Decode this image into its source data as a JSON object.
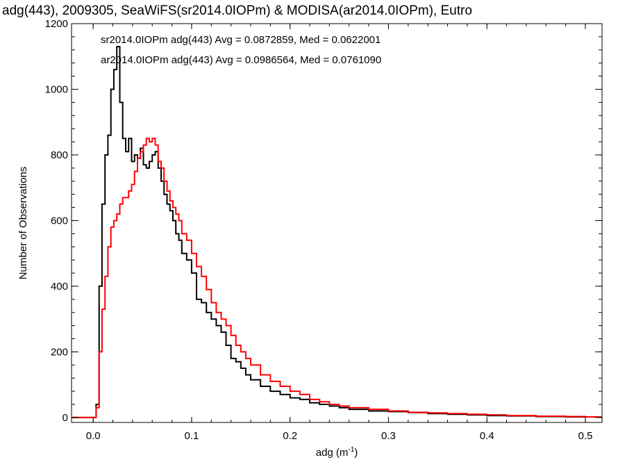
{
  "chart_data": {
    "type": "line",
    "title": "adg(443), 2009305, SeaWiFS(sr2014.0IOPm) & MODISA(ar2014.0IOPm), Eutro",
    "xlabel": "adg (m",
    "xlabel_sup": "-1",
    "xlabel_close": ")",
    "ylabel": "Number of Observations",
    "xlim": [
      -0.022,
      0.517
    ],
    "ylim": [
      -15,
      1200
    ],
    "xticks": [
      0.0,
      0.1,
      0.2,
      0.3,
      0.4,
      0.5
    ],
    "xtick_labels": [
      "0.0",
      "0.1",
      "0.2",
      "0.3",
      "0.4",
      "0.5"
    ],
    "yticks": [
      0,
      200,
      400,
      600,
      800,
      1000,
      1200
    ],
    "ytick_labels": [
      "0",
      "200",
      "400",
      "600",
      "800",
      "1000",
      "1200"
    ],
    "grid": false,
    "series": [
      {
        "name": "sr2014.0IOPm adg(443) Avg = 0.0872859, Med = 0.0622001",
        "color": "#000000",
        "x": [
          -0.022,
          0.0,
          0.003,
          0.006,
          0.009,
          0.012,
          0.015,
          0.018,
          0.021,
          0.024,
          0.027,
          0.03,
          0.033,
          0.036,
          0.039,
          0.042,
          0.045,
          0.048,
          0.051,
          0.054,
          0.057,
          0.06,
          0.063,
          0.066,
          0.069,
          0.072,
          0.075,
          0.078,
          0.081,
          0.084,
          0.087,
          0.09,
          0.095,
          0.1,
          0.105,
          0.11,
          0.115,
          0.12,
          0.125,
          0.13,
          0.135,
          0.14,
          0.145,
          0.15,
          0.155,
          0.16,
          0.17,
          0.18,
          0.19,
          0.2,
          0.21,
          0.22,
          0.23,
          0.24,
          0.25,
          0.26,
          0.28,
          0.3,
          0.32,
          0.34,
          0.36,
          0.38,
          0.4,
          0.42,
          0.45,
          0.48,
          0.5,
          0.517
        ],
        "y": [
          0,
          0,
          40,
          400,
          650,
          800,
          860,
          1000,
          1060,
          1130,
          960,
          850,
          810,
          850,
          780,
          800,
          790,
          820,
          770,
          760,
          780,
          800,
          810,
          760,
          720,
          680,
          650,
          630,
          600,
          560,
          540,
          500,
          480,
          440,
          360,
          350,
          320,
          300,
          280,
          260,
          220,
          180,
          170,
          150,
          130,
          115,
          95,
          80,
          70,
          60,
          55,
          45,
          40,
          35,
          30,
          25,
          20,
          18,
          15,
          12,
          10,
          8,
          6,
          5,
          3,
          2,
          2,
          2
        ]
      },
      {
        "name": "ar2014.0IOPm adg(443) Avg = 0.0986564, Med = 0.0761090",
        "color": "#ff0000",
        "x": [
          -0.022,
          0.0,
          0.003,
          0.006,
          0.009,
          0.012,
          0.015,
          0.018,
          0.021,
          0.024,
          0.027,
          0.03,
          0.033,
          0.036,
          0.039,
          0.042,
          0.045,
          0.048,
          0.051,
          0.054,
          0.057,
          0.06,
          0.063,
          0.066,
          0.069,
          0.072,
          0.075,
          0.078,
          0.081,
          0.084,
          0.087,
          0.09,
          0.095,
          0.1,
          0.105,
          0.11,
          0.115,
          0.12,
          0.125,
          0.13,
          0.135,
          0.14,
          0.145,
          0.15,
          0.155,
          0.16,
          0.17,
          0.18,
          0.19,
          0.2,
          0.21,
          0.22,
          0.23,
          0.24,
          0.25,
          0.26,
          0.28,
          0.3,
          0.32,
          0.34,
          0.36,
          0.38,
          0.4,
          0.42,
          0.45,
          0.48,
          0.5,
          0.517
        ],
        "y": [
          0,
          0,
          30,
          200,
          330,
          430,
          520,
          580,
          600,
          620,
          650,
          670,
          670,
          690,
          710,
          750,
          790,
          810,
          830,
          850,
          840,
          850,
          830,
          780,
          760,
          720,
          690,
          660,
          640,
          620,
          600,
          560,
          540,
          500,
          460,
          430,
          390,
          350,
          320,
          300,
          280,
          250,
          220,
          200,
          180,
          160,
          130,
          110,
          95,
          80,
          70,
          55,
          48,
          40,
          35,
          30,
          25,
          20,
          16,
          14,
          12,
          10,
          8,
          6,
          4,
          3,
          2,
          2
        ]
      }
    ]
  }
}
